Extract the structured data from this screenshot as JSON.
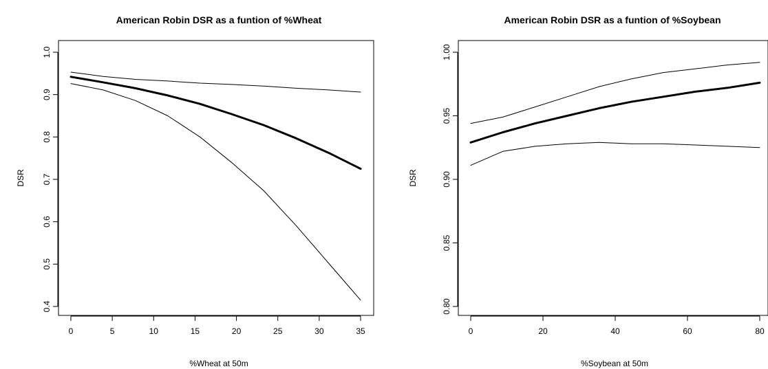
{
  "chart_data": [
    {
      "type": "line",
      "title": "American Robin DSR as a funtion of %Wheat",
      "xlabel": "%Wheat at 50m",
      "ylabel": "DSR",
      "xlim": [
        0,
        35
      ],
      "ylim": [
        0.4,
        1.0
      ],
      "xticks": [
        0,
        5,
        10,
        15,
        20,
        25,
        30,
        35
      ],
      "yticks": [
        0.4,
        0.5,
        0.6,
        0.7,
        0.8,
        0.9,
        1.0
      ],
      "xtick_labels": [
        "0",
        "5",
        "10",
        "15",
        "20",
        "25",
        "30",
        "35"
      ],
      "ytick_labels": [
        "0.4",
        "0.5",
        "0.6",
        "0.7",
        "0.8",
        "0.9",
        "1.0"
      ],
      "grid": false,
      "series": [
        {
          "role": "estimate",
          "x": [
            0,
            3.9,
            7.8,
            11.7,
            15.6,
            19.4,
            23.3,
            27.2,
            31.1,
            35
          ],
          "y": [
            0.942,
            0.929,
            0.915,
            0.898,
            0.878,
            0.854,
            0.828,
            0.797,
            0.763,
            0.725
          ]
        },
        {
          "role": "upper",
          "x": [
            0,
            3.9,
            7.8,
            11.7,
            15.6,
            19.4,
            23.3,
            27.2,
            31.1,
            35
          ],
          "y": [
            0.953,
            0.943,
            0.936,
            0.932,
            0.927,
            0.924,
            0.92,
            0.915,
            0.911,
            0.906
          ]
        },
        {
          "role": "lower",
          "x": [
            0,
            3.9,
            7.8,
            11.7,
            15.6,
            19.4,
            23.3,
            27.2,
            31.1,
            35
          ],
          "y": [
            0.926,
            0.911,
            0.886,
            0.85,
            0.8,
            0.74,
            0.673,
            0.591,
            0.503,
            0.415
          ]
        }
      ]
    },
    {
      "type": "line",
      "title": "American Robin DSR as a funtion of %Soybean",
      "xlabel": "%Soybean at 50m",
      "ylabel": "DSR",
      "xlim": [
        0,
        80
      ],
      "ylim": [
        0.8,
        1.0
      ],
      "xticks": [
        0,
        20,
        40,
        60,
        80
      ],
      "yticks": [
        0.8,
        0.85,
        0.9,
        0.95,
        1.0
      ],
      "xtick_labels": [
        "0",
        "20",
        "40",
        "60",
        "80"
      ],
      "ytick_labels": [
        "0.80",
        "0.85",
        "0.90",
        "0.95",
        "1.00"
      ],
      "grid": false,
      "series": [
        {
          "role": "estimate",
          "x": [
            0,
            8.9,
            17.8,
            26.7,
            35.6,
            44.4,
            53.3,
            62.2,
            71.1,
            80
          ],
          "y": [
            0.929,
            0.937,
            0.944,
            0.95,
            0.956,
            0.961,
            0.965,
            0.969,
            0.972,
            0.976
          ]
        },
        {
          "role": "upper",
          "x": [
            0,
            8.9,
            17.8,
            26.7,
            35.6,
            44.4,
            53.3,
            62.2,
            71.1,
            80
          ],
          "y": [
            0.944,
            0.949,
            0.957,
            0.965,
            0.973,
            0.979,
            0.984,
            0.987,
            0.99,
            0.992
          ]
        },
        {
          "role": "lower",
          "x": [
            0,
            8.9,
            17.8,
            26.7,
            35.6,
            44.4,
            53.3,
            62.2,
            71.1,
            80
          ],
          "y": [
            0.911,
            0.922,
            0.926,
            0.928,
            0.929,
            0.928,
            0.928,
            0.927,
            0.926,
            0.925
          ]
        }
      ]
    }
  ]
}
